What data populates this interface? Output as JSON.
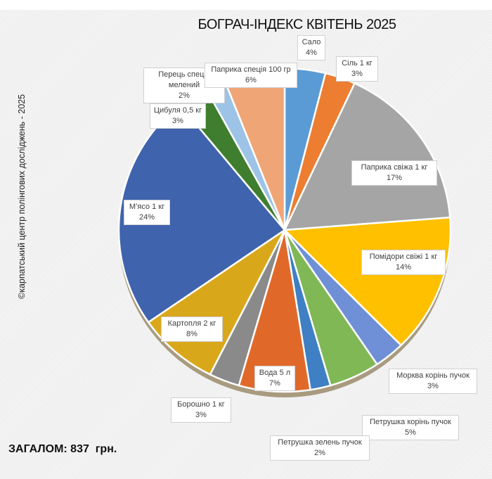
{
  "chart_data": {
    "type": "pie",
    "title": "БОГРАЧ-ІНДЕКС КВІТЕНЬ 2025",
    "categories": [
      "Сало",
      "Сіль 1 кг",
      "Паприка свіжа 1 кг",
      "Помідори свіжі 1 кг",
      "Морква корінь пучок",
      "Петрушка корінь пучок",
      "Петрушка зелень пучок",
      "Вода 5 л",
      "Борошно 1 кг",
      "Картопля 2 кг",
      "М’ясо 1 кг",
      "Цибуля 0,5 кг",
      "Перець спеція мелений",
      "Паприка спеція 100 гр"
    ],
    "values": [
      4,
      3,
      17,
      14,
      3,
      5,
      2,
      7,
      3,
      8,
      24,
      3,
      2,
      6
    ],
    "labels": [
      "4%",
      "3%",
      "17%",
      "14%",
      "3%",
      "5%",
      "2%",
      "7%",
      "3%",
      "8%",
      "24%",
      "3%",
      "2%",
      "6%"
    ],
    "colors": [
      "#5b9bd5",
      "#ed7d31",
      "#a5a5a5",
      "#ffc000",
      "#6f8fd6",
      "#80b856",
      "#3f7fc4",
      "#e0692a",
      "#8a8a8a",
      "#d9a81a",
      "#3f63ad",
      "#3f7e2e",
      "#9dc3e6",
      "#f0a576"
    ],
    "legend": "none"
  },
  "watermark": "©карпатський центр полінгових досліджень - 2025",
  "total": "ЗАГАЛОМ: 837  грн."
}
